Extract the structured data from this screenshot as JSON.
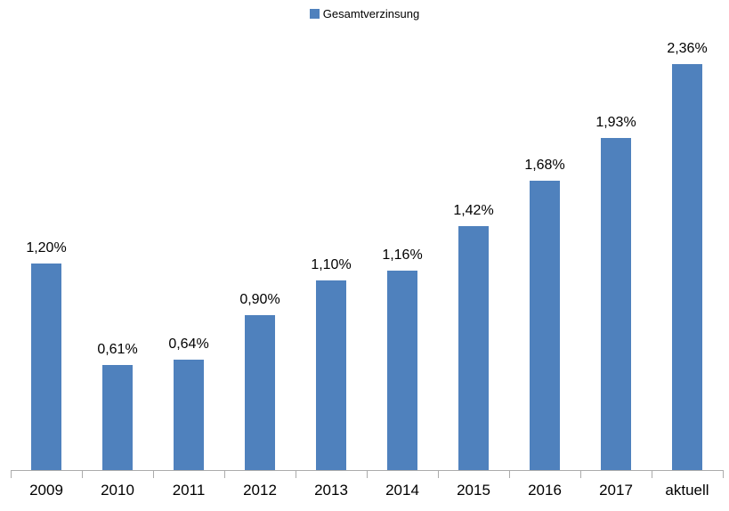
{
  "legend": {
    "label": "Gesamtverzinsung",
    "swatch_color": "#4F81BD"
  },
  "chart_data": {
    "type": "bar",
    "title": "",
    "xlabel": "",
    "ylabel": "",
    "categories": [
      "2009",
      "2010",
      "2011",
      "2012",
      "2013",
      "2014",
      "2015",
      "2016",
      "2017",
      "aktuell"
    ],
    "series": [
      {
        "name": "Gesamtverzinsung",
        "values": [
          1.2,
          0.61,
          0.64,
          0.9,
          1.1,
          1.16,
          1.42,
          1.68,
          1.93,
          2.36
        ]
      }
    ],
    "data_labels": [
      "1,20%",
      "0,61%",
      "0,64%",
      "0,90%",
      "1,10%",
      "1,16%",
      "1,42%",
      "1,68%",
      "1,93%",
      "2,36%"
    ],
    "ylim": [
      0,
      2.75
    ],
    "grid": false,
    "y_axis_visible": false,
    "legend_position": "top-center",
    "bar_color": "#4F81BD",
    "axis_color": "#ABABAB",
    "label_color": "#000000",
    "background_color": "#FFFFFF"
  }
}
